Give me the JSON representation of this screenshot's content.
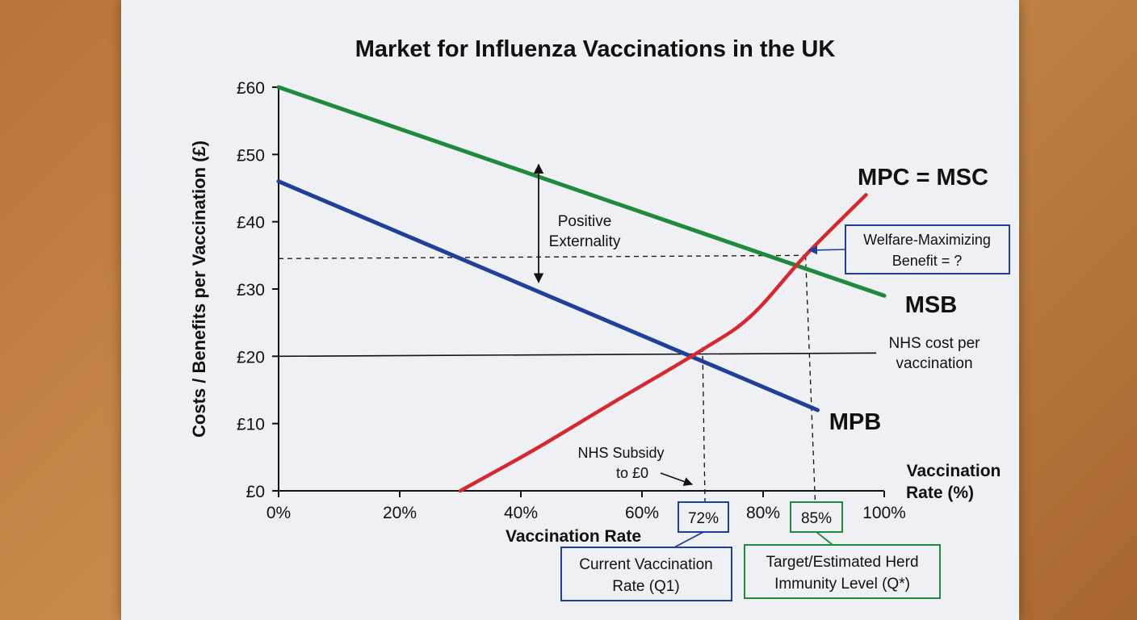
{
  "chart_data": {
    "type": "line",
    "title": "Market for Influenza Vaccinations in the UK",
    "ylabel": "Costs / Benefits per Vaccination (£)",
    "xlabel": "Vaccination Rate",
    "xlabel_right": "Vaccination Rate (%)",
    "xlabel_right_lines": [
      "Vaccination",
      "Rate (%)"
    ],
    "xlim": [
      0,
      100
    ],
    "ylim": [
      0,
      60
    ],
    "x_ticks": [
      0,
      20,
      40,
      60,
      80,
      100
    ],
    "x_tick_labels": [
      "0%",
      "20%",
      "40%",
      "60%",
      "80%",
      "100%"
    ],
    "y_ticks": [
      0,
      10,
      20,
      30,
      40,
      50,
      60
    ],
    "y_tick_labels": [
      "£0",
      "£10",
      "£20",
      "£30",
      "£40",
      "£50",
      "£60"
    ],
    "series": [
      {
        "name": "MSB",
        "color": "#1e8a3c",
        "x": [
          0,
          100
        ],
        "y": [
          60,
          29
        ]
      },
      {
        "name": "MPB",
        "color": "#1f3f9a",
        "x": [
          0,
          89
        ],
        "y": [
          46,
          12
        ]
      },
      {
        "name": "MPC = MSC",
        "color": "#d6282e",
        "x": [
          30,
          42,
          55,
          70,
          78,
          87,
          97
        ],
        "y": [
          0,
          6,
          13,
          21,
          26,
          35,
          44
        ]
      }
    ],
    "hlines": [
      {
        "name": "NHS cost per vaccination",
        "y": 20,
        "lines": [
          "NHS cost per",
          "vaccination"
        ]
      }
    ],
    "annotations": {
      "externality": {
        "lines": [
          "Positive",
          "Externality"
        ],
        "x": 42,
        "y_top": 48.5,
        "y_bottom": 31
      },
      "welfare": {
        "lines": [
          "Welfare-Maximizing",
          "Benefit = ?"
        ],
        "x": 87,
        "y": 35
      },
      "subsidy": {
        "lines": [
          "NHS Subsidy",
          "to £0"
        ]
      },
      "q1": {
        "value": "72%",
        "x": 70,
        "y": 21,
        "lines": [
          "Current Vaccination",
          "Rate (Q1)"
        ]
      },
      "qstar": {
        "value": "85%",
        "x": 87,
        "y": 35,
        "lines": [
          "Target/Estimated Herd",
          "Immunity Level (Q*)"
        ]
      }
    },
    "colors": {
      "axis": "#111111",
      "blue_box": "#1f3f9a",
      "green_box": "#1e8a3c"
    }
  }
}
